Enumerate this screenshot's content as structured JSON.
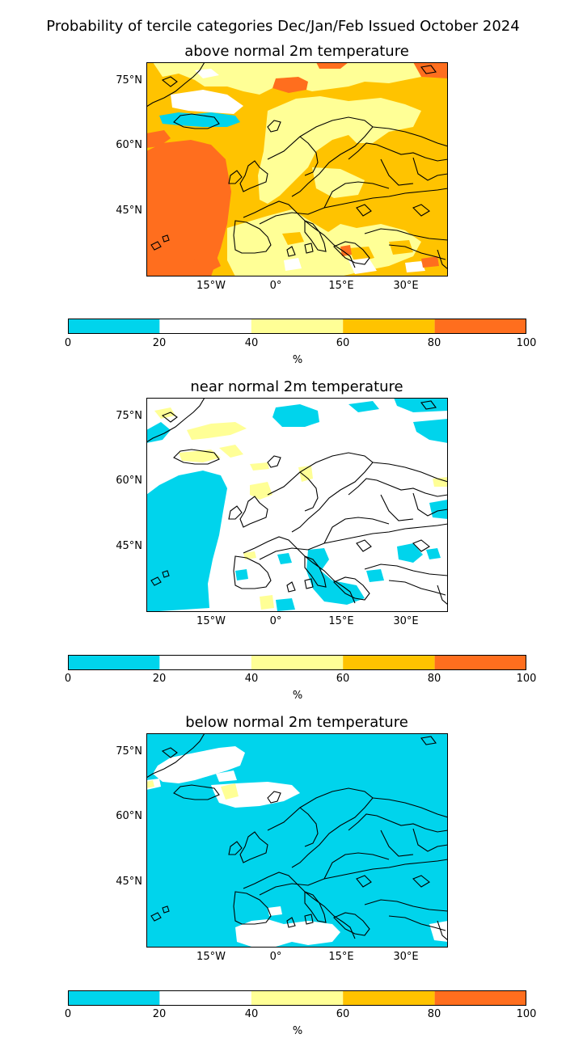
{
  "figure_title": "Probability of tercile categories Dec/Jan/Feb Issued October 2024",
  "colors": {
    "cyan": "#00d4ec",
    "white": "#ffffff",
    "light_yellow": "#ffff96",
    "gold": "#ffc300",
    "orange": "#ff6e1e",
    "coast": "#000000"
  },
  "panels": [
    {
      "title": "above normal 2m temperature",
      "lat_ticks": [
        "75°N",
        "60°N",
        "45°N"
      ],
      "lon_ticks": [
        "15°W",
        "0°",
        "15°E",
        "30°E"
      ]
    },
    {
      "title": "near normal 2m temperature",
      "lat_ticks": [
        "75°N",
        "60°N",
        "45°N"
      ],
      "lon_ticks": [
        "15°W",
        "0°",
        "15°E",
        "30°E"
      ]
    },
    {
      "title": "below normal 2m temperature",
      "lat_ticks": [
        "75°N",
        "60°N",
        "45°N"
      ],
      "lon_ticks": [
        "15°W",
        "0°",
        "15°E",
        "30°E"
      ]
    }
  ],
  "colorbar": {
    "ticks": [
      "0",
      "20",
      "40",
      "60",
      "80",
      "100"
    ],
    "label": "%",
    "bins": [
      {
        "range": "0-20",
        "color": "#00d4ec"
      },
      {
        "range": "20-40",
        "color": "#ffffff"
      },
      {
        "range": "40-60",
        "color": "#ffff96"
      },
      {
        "range": "60-80",
        "color": "#ffc300"
      },
      {
        "range": "80-100",
        "color": "#ff6e1e"
      }
    ]
  }
}
